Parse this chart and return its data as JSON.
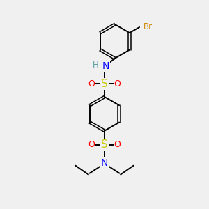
{
  "background_color": "#f0f0f0",
  "atom_colors": {
    "C": "#000000",
    "H": "#5a9ea0",
    "N": "#0000ff",
    "O": "#ff0000",
    "S": "#cccc00",
    "Br": "#cc8800"
  },
  "bond_color": "#000000",
  "figsize": [
    3.0,
    3.0
  ],
  "dpi": 100
}
